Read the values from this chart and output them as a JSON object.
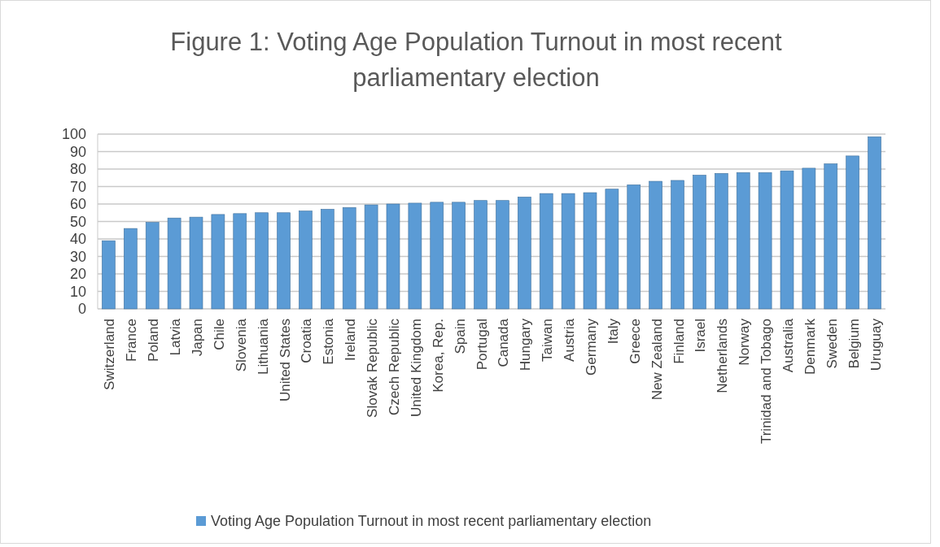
{
  "chart_data": {
    "type": "bar",
    "title": "Figure 1: Voting Age Population Turnout in most recent parliamentary election",
    "categories": [
      "Switzerland",
      "France",
      "Poland",
      "Latvia",
      "Japan",
      "Chile",
      "Slovenia",
      "Lithuania",
      "United States",
      "Croatia",
      "Estonia",
      "Ireland",
      "Slovak Republic",
      "Czech Republic",
      "United Kingdom",
      "Korea, Rep.",
      "Spain",
      "Portugal",
      "Canada",
      "Hungary",
      "Taiwan",
      "Austria",
      "Germany",
      "Italy",
      "Greece",
      "New Zealand",
      "Finland",
      "Israel",
      "Netherlands",
      "Norway",
      "Trinidad and Tobago",
      "Australia",
      "Denmark",
      "Sweden",
      "Belgium",
      "Uruguay"
    ],
    "series": [
      {
        "name": "Voting Age Population Turnout in most recent parliamentary election",
        "color": "#5b9bd5",
        "values": [
          39,
          46,
          49.5,
          52,
          52.5,
          54,
          54.5,
          55,
          55,
          56,
          57,
          58,
          59.5,
          60,
          60.5,
          61,
          61,
          62,
          62,
          64,
          66,
          66,
          66.5,
          68.5,
          71,
          73,
          73.5,
          76.5,
          77.5,
          78,
          78,
          79,
          80.5,
          83,
          87.5,
          98.5
        ]
      }
    ],
    "ylim": [
      0,
      100
    ],
    "yticks": [
      0,
      10,
      20,
      30,
      40,
      50,
      60,
      70,
      80,
      90,
      100
    ],
    "grid": "y",
    "legend": "bottom"
  }
}
